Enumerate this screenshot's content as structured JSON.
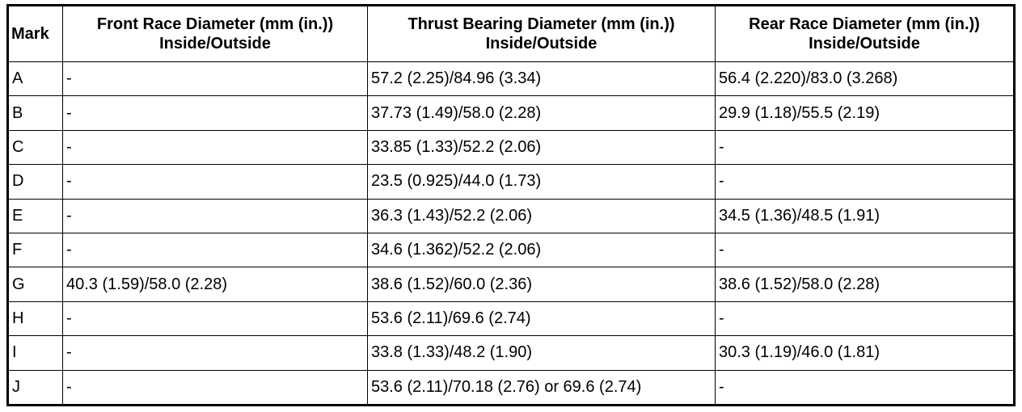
{
  "table": {
    "headers": [
      [
        "Mark"
      ],
      [
        "Front Race Diameter (mm (in.))",
        "Inside/Outside"
      ],
      [
        "Thrust Bearing Diameter (mm (in.))",
        "Inside/Outside"
      ],
      [
        "Rear Race Diameter (mm (in.))",
        "Inside/Outside"
      ]
    ],
    "rows": [
      [
        "A",
        "-",
        "57.2 (2.25)/84.96 (3.34)",
        "56.4 (2.220)/83.0 (3.268)"
      ],
      [
        "B",
        "-",
        "37.73 (1.49)/58.0 (2.28)",
        "29.9 (1.18)/55.5 (2.19)"
      ],
      [
        "C",
        "-",
        "33.85 (1.33)/52.2 (2.06)",
        "-"
      ],
      [
        "D",
        "-",
        "23.5 (0.925)/44.0 (1.73)",
        "-"
      ],
      [
        "E",
        "-",
        "36.3 (1.43)/52.2 (2.06)",
        "34.5 (1.36)/48.5 (1.91)"
      ],
      [
        "F",
        "-",
        "34.6 (1.362)/52.2 (2.06)",
        "-"
      ],
      [
        "G",
        "40.3 (1.59)/58.0 (2.28)",
        "38.6 (1.52)/60.0 (2.36)",
        "38.6 (1.52)/58.0 (2.28)"
      ],
      [
        "H",
        "-",
        "53.6 (2.11)/69.6 (2.74)",
        "-"
      ],
      [
        "I",
        "-",
        "33.8 (1.33)/48.2 (1.90)",
        "30.3 (1.19)/46.0 (1.81)"
      ],
      [
        "J",
        "-",
        "53.6 (2.11)/70.18 (2.76) or 69.6 (2.74)",
        "-"
      ]
    ]
  }
}
